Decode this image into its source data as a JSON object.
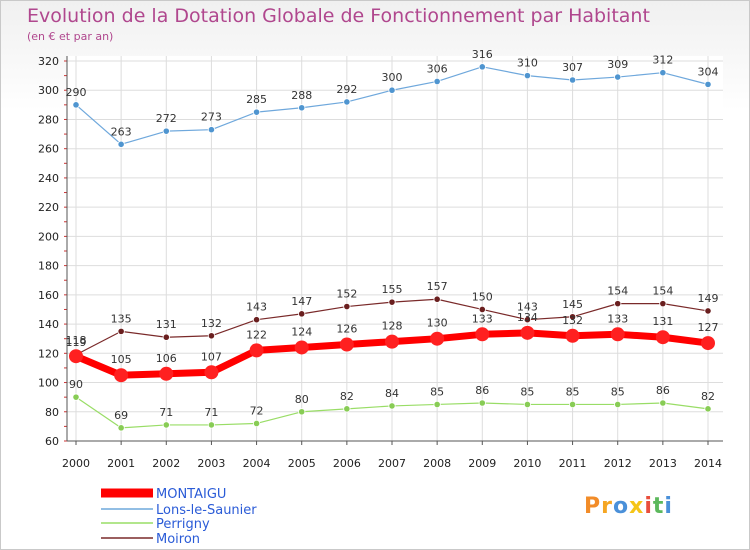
{
  "chart_data": {
    "type": "line",
    "title": "Evolution de la Dotation Globale de Fonctionnement par Habitant",
    "subtitle": "(en € et par an)",
    "xlabel": "",
    "ylabel": "",
    "ylim": [
      60,
      320
    ],
    "yticks": [
      60,
      80,
      100,
      120,
      140,
      160,
      180,
      200,
      220,
      240,
      260,
      280,
      300,
      320
    ],
    "grid": true,
    "legend": "bottom-left",
    "categories": [
      "2000",
      "2001",
      "2002",
      "2003",
      "2004",
      "2005",
      "2006",
      "2007",
      "2008",
      "2009",
      "2010",
      "2011",
      "2012",
      "2013",
      "2014"
    ],
    "series": [
      {
        "name": "MONTAIGU",
        "color": "#ff0000",
        "values": [
          118,
          105,
          106,
          107,
          122,
          124,
          126,
          128,
          130,
          133,
          134,
          132,
          133,
          131,
          127
        ]
      },
      {
        "name": "Lons-le-Saunier",
        "color": "#6fa8dc",
        "values": [
          290,
          263,
          272,
          273,
          285,
          288,
          292,
          300,
          306,
          316,
          310,
          307,
          309,
          312,
          304
        ]
      },
      {
        "name": "Perrigny",
        "color": "#99dd66",
        "values": [
          90,
          69,
          71,
          71,
          72,
          80,
          82,
          84,
          85,
          86,
          85,
          85,
          85,
          86,
          82
        ]
      },
      {
        "name": "Moiron",
        "color": "#7a2a2a",
        "values": [
          119,
          135,
          131,
          132,
          143,
          147,
          152,
          155,
          157,
          150,
          143,
          145,
          154,
          154,
          149
        ]
      }
    ]
  },
  "logo": {
    "text": "Proxiti",
    "colors": [
      "#f28c28",
      "#f5a623",
      "#4a90d9",
      "#f5c518",
      "#e94e3c",
      "#5cb85c",
      "#4a90d9"
    ]
  }
}
